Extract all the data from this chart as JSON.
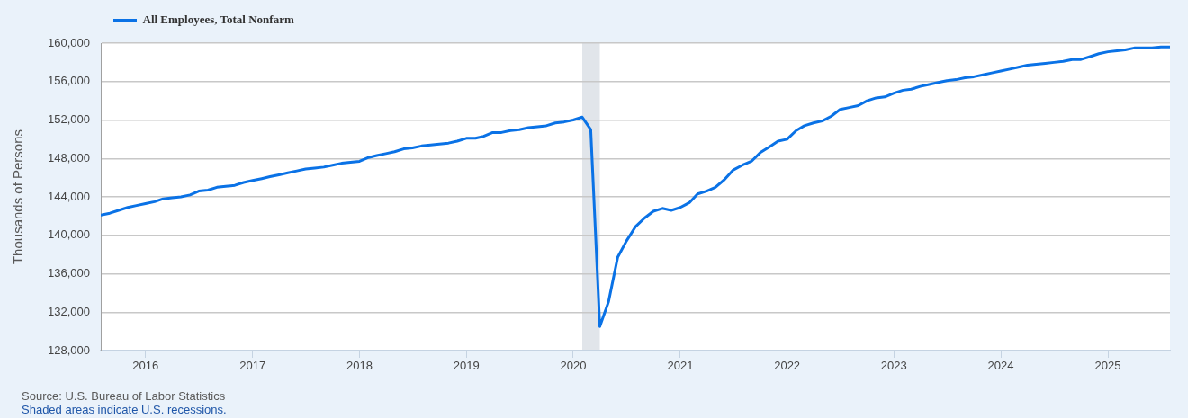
{
  "chart_data": {
    "type": "line",
    "legend": "top left",
    "grid": "y",
    "marker": "none",
    "line_style": "solid",
    "ylabel": "Thousands of Persons",
    "xlim": [
      "2015-08",
      "2025-08"
    ],
    "xticks": [
      "2016",
      "2017",
      "2018",
      "2019",
      "2020",
      "2021",
      "2022",
      "2023",
      "2024",
      "2025"
    ],
    "ylim": [
      128000,
      160000
    ],
    "yticks": [
      {
        "value": 128000,
        "label": "128,000"
      },
      {
        "value": 132000,
        "label": "132,000"
      },
      {
        "value": 136000,
        "label": "136,000"
      },
      {
        "value": 140000,
        "label": "140,000"
      },
      {
        "value": 144000,
        "label": "144,000"
      },
      {
        "value": 148000,
        "label": "148,000"
      },
      {
        "value": 152000,
        "label": "152,000"
      },
      {
        "value": 156000,
        "label": "156,000"
      },
      {
        "value": 160000,
        "label": "160,000"
      }
    ],
    "bands": [
      {
        "axis": "x",
        "from": "2020-02",
        "to": "2020-04",
        "color": "#e1e5ea"
      }
    ],
    "annotations": [
      "Source: U.S. Bureau of Labor Statistics",
      "Shaded areas indicate U.S. recessions."
    ],
    "x": [
      "2015-08",
      "2015-09",
      "2015-10",
      "2015-11",
      "2015-12",
      "2016-01",
      "2016-02",
      "2016-03",
      "2016-04",
      "2016-05",
      "2016-06",
      "2016-07",
      "2016-08",
      "2016-09",
      "2016-10",
      "2016-11",
      "2016-12",
      "2017-01",
      "2017-02",
      "2017-03",
      "2017-04",
      "2017-05",
      "2017-06",
      "2017-07",
      "2017-08",
      "2017-09",
      "2017-10",
      "2017-11",
      "2017-12",
      "2018-01",
      "2018-02",
      "2018-03",
      "2018-04",
      "2018-05",
      "2018-06",
      "2018-07",
      "2018-08",
      "2018-09",
      "2018-10",
      "2018-11",
      "2018-12",
      "2019-01",
      "2019-02",
      "2019-03",
      "2019-04",
      "2019-05",
      "2019-06",
      "2019-07",
      "2019-08",
      "2019-09",
      "2019-10",
      "2019-11",
      "2019-12",
      "2020-01",
      "2020-02",
      "2020-03",
      "2020-04",
      "2020-05",
      "2020-06",
      "2020-07",
      "2020-08",
      "2020-09",
      "2020-10",
      "2020-11",
      "2020-12",
      "2021-01",
      "2021-02",
      "2021-03",
      "2021-04",
      "2021-05",
      "2021-06",
      "2021-07",
      "2021-08",
      "2021-09",
      "2021-10",
      "2021-11",
      "2021-12",
      "2022-01",
      "2022-02",
      "2022-03",
      "2022-04",
      "2022-05",
      "2022-06",
      "2022-07",
      "2022-08",
      "2022-09",
      "2022-10",
      "2022-11",
      "2022-12",
      "2023-01",
      "2023-02",
      "2023-03",
      "2023-04",
      "2023-05",
      "2023-06",
      "2023-07",
      "2023-08",
      "2023-09",
      "2023-10",
      "2023-11",
      "2023-12",
      "2024-01",
      "2024-02",
      "2024-03",
      "2024-04",
      "2024-05",
      "2024-06",
      "2024-07",
      "2024-08",
      "2024-09",
      "2024-10",
      "2024-11",
      "2024-12",
      "2025-01",
      "2025-02",
      "2025-03",
      "2025-04",
      "2025-05",
      "2025-06",
      "2025-07",
      "2025-08"
    ],
    "series": [
      {
        "name": "All Employees, Total Nonfarm",
        "color": "#0a72e6",
        "values": [
          142100,
          142300,
          142600,
          142900,
          143100,
          143300,
          143500,
          143800,
          143900,
          144000,
          144200,
          144600,
          144700,
          145000,
          145100,
          145200,
          145500,
          145700,
          145900,
          146100,
          146300,
          146500,
          146700,
          146900,
          147000,
          147100,
          147300,
          147500,
          147600,
          147700,
          148100,
          148300,
          148500,
          148700,
          149000,
          149100,
          149300,
          149400,
          149500,
          149600,
          149800,
          150100,
          150100,
          150300,
          150700,
          150700,
          150900,
          151000,
          151200,
          151300,
          151400,
          151700,
          151800,
          152000,
          152300,
          151000,
          130500,
          133100,
          137700,
          139400,
          140900,
          141800,
          142500,
          142800,
          142600,
          142900,
          143400,
          144300,
          144600,
          145000,
          145800,
          146800,
          147300,
          147700,
          148600,
          149200,
          149800,
          150000,
          150900,
          151400,
          151700,
          151900,
          152400,
          153100,
          153300,
          153500,
          154000,
          154300,
          154400,
          154800,
          155100,
          155200,
          155500,
          155700,
          155900,
          156100,
          156200,
          156400,
          156500,
          156700,
          156900,
          157100,
          157300,
          157500,
          157700,
          157800,
          157900,
          158000,
          158100,
          158300,
          158300,
          158600,
          158900,
          159100,
          159200,
          159300,
          159500,
          159500,
          159500,
          159600,
          159600
        ]
      }
    ]
  }
}
